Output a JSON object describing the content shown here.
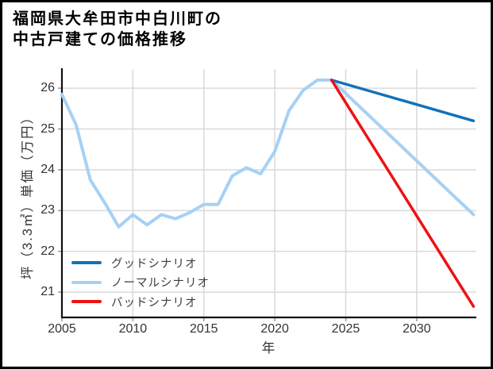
{
  "title": {
    "line1": "福岡県大牟田市中白川町の",
    "line2": "中古戸建ての価格推移"
  },
  "chart_data": {
    "type": "line",
    "title": "福岡県大牟田市中白川町の中古戸建ての価格推移",
    "xlabel": "年",
    "ylabel": "坪（3.3㎡）単価（万円）",
    "xlim": [
      2005,
      2034.2
    ],
    "ylim": [
      20.38,
      26.47
    ],
    "xticks": [
      2005,
      2010,
      2015,
      2020,
      2025,
      2030
    ],
    "xtick_labels": [
      "2005",
      "2010",
      "2015",
      "2020",
      "2025",
      "2030"
    ],
    "yticks": [
      21,
      22,
      23,
      24,
      25,
      26
    ],
    "ytick_labels": [
      "21",
      "22",
      "23",
      "24",
      "25",
      "26"
    ],
    "grid": true,
    "legend_position": "lower-left",
    "series": [
      {
        "id": "good-scenario",
        "name": "グッドシナリオ",
        "color": "#1172ba",
        "width": 3.5,
        "x": [
          2024,
          2034
        ],
        "y": [
          26.2,
          25.2
        ]
      },
      {
        "id": "normal-scenario",
        "name": "ノーマルシナリオ",
        "color": "#a6d1f4",
        "width": 4,
        "x": [
          2005,
          2006,
          2007,
          2008,
          2009,
          2010,
          2011,
          2012,
          2013,
          2014,
          2015,
          2016,
          2017,
          2018,
          2019,
          2020,
          2021,
          2022,
          2023,
          2024,
          2034
        ],
        "y": [
          25.85,
          25.1,
          23.75,
          23.2,
          22.6,
          22.9,
          22.65,
          22.9,
          22.8,
          22.95,
          23.15,
          23.15,
          23.85,
          24.05,
          23.9,
          24.45,
          25.45,
          25.95,
          26.2,
          26.2,
          22.9
        ]
      },
      {
        "id": "bad-scenario",
        "name": "バッドシナリオ",
        "color": "#ee1111",
        "width": 3.5,
        "x": [
          2024,
          2034
        ],
        "y": [
          26.2,
          20.65
        ]
      }
    ]
  },
  "colors": {
    "grid": "#d9d9d9",
    "spine": "#111111",
    "tick": "#9a9a9a",
    "text": "#333333",
    "background": "#ffffff",
    "border": "#000000"
  }
}
